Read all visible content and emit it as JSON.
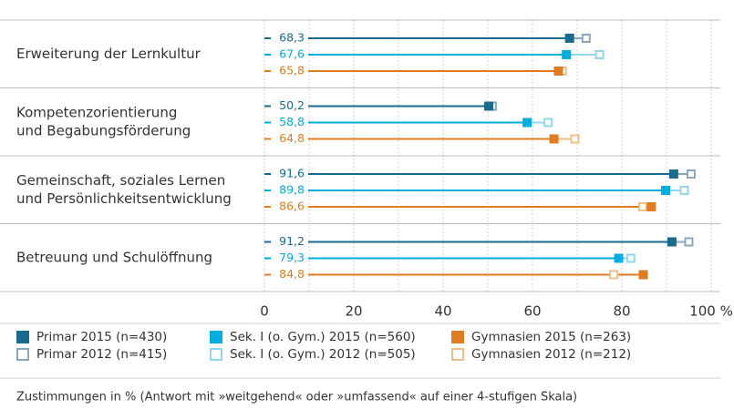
{
  "chart_data": {
    "type": "dot",
    "categories": [
      [
        "Erweiterung der Lernkultur"
      ],
      [
        "Kompetenzorientierung",
        "und Begabungsförderung"
      ],
      [
        "Gemeinschaft, soziales Lernen",
        "und Persönlichkeitsentwicklung"
      ],
      [
        "Betreuung und Schulöffnung"
      ]
    ],
    "series": [
      {
        "name": "Primar 2015 (n=430)",
        "color": "#176b8f",
        "marker": "filled",
        "values": [
          68.3,
          50.2,
          91.6,
          91.2
        ],
        "value_labels": [
          "68,3",
          "50,2",
          "91,6",
          "91,2"
        ]
      },
      {
        "name": "Sek. I (o. Gym.) 2015 (n=560)",
        "color": "#00aee0",
        "marker": "filled",
        "values": [
          67.6,
          58.8,
          89.8,
          79.3
        ],
        "value_labels": [
          "67,6",
          "58,8",
          "89,8",
          "79,3"
        ]
      },
      {
        "name": "Gymnasien 2015 (n=263)",
        "color": "#e07b1f",
        "marker": "filled",
        "values": [
          65.8,
          64.8,
          86.6,
          84.8
        ],
        "value_labels": [
          "65,8",
          "64,8",
          "86,6",
          "84,8"
        ]
      },
      {
        "name": "Primar 2012 (n=415)",
        "color": "#8aa8bd",
        "marker": "hollow",
        "values": [
          72,
          51,
          95.5,
          95
        ]
      },
      {
        "name": "Sek. I (o. Gym.) 2012 (n=505)",
        "color": "#8fd8f0",
        "marker": "hollow",
        "values": [
          75,
          63.5,
          94,
          82
        ]
      },
      {
        "name": "Gymnasien 2012 (n=212)",
        "color": "#f2bf8a",
        "marker": "hollow",
        "values": [
          66.7,
          69.5,
          84.7,
          78.2
        ]
      }
    ],
    "xlim": [
      0,
      100
    ],
    "xticks": [
      0,
      20,
      40,
      60,
      80,
      {
        "value": 100,
        "label": "100 %"
      }
    ],
    "minor_xticks": [
      10,
      30,
      50,
      70,
      90
    ],
    "grid": true,
    "note": "Zustimmungen in % (Antwort mit »weitgehend« oder »umfassend« auf einer 4-stufigen Skala)"
  }
}
